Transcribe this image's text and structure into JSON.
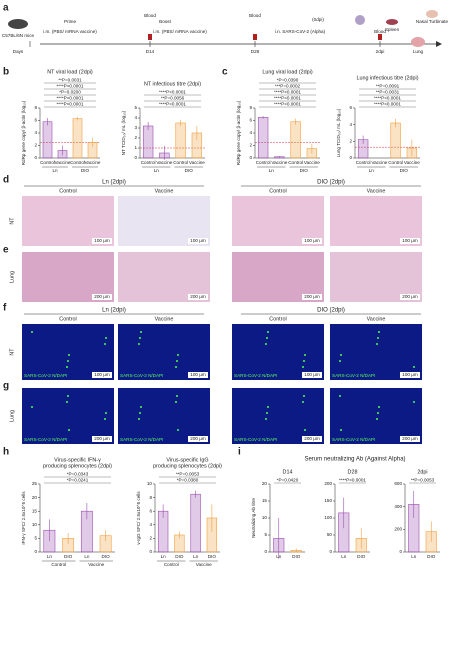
{
  "panel_labels": [
    "a",
    "b",
    "c",
    "d",
    "e",
    "f",
    "g",
    "h",
    "i"
  ],
  "timeline": [
    "C57BL/6N mice",
    "Days",
    "Prime",
    "i.m. (PBS/ mRNA vaccine)",
    "Blood",
    "D14",
    "Boost",
    "i.m. (PBS/ mRNA vaccine)",
    "Blood",
    "D28",
    "(0dpi)",
    "i.n. SARS-CoV-2 (Alpha)",
    "Blood",
    "2dpi",
    "Spleen",
    "Nasal Turbinate",
    "Lung"
  ],
  "histology": {
    "group_titles": [
      "Ln (2dpi)",
      "DIO (2dpi)"
    ],
    "columns": [
      "Control",
      "Vaccine",
      "Control",
      "Vaccine"
    ],
    "rows": [
      {
        "label": "NT",
        "scale": "100 μm"
      },
      {
        "label": "Lung",
        "scale": "200 μm"
      }
    ]
  },
  "fluorescence": {
    "group_titles": [
      "Ln (2dpi)",
      "DIO (2dpi)"
    ],
    "columns": [
      "Control",
      "Vaccine",
      "Control",
      "Vaccine"
    ],
    "stain": "SARS-CoV-2 N/DAPI",
    "rows": [
      {
        "label": "NT",
        "scale": "100 μm"
      },
      {
        "label": "Lung",
        "scale": "200 μm"
      }
    ]
  },
  "i_title": "Serum neutralizing Ab (Against Alpha)",
  "chart_data": [
    {
      "type": "bar",
      "title": [
        "NT viral load (2dpi)"
      ],
      "ylabel": "RdRp gene copy/ β-actin (log₁₀)",
      "categories": [
        "Control",
        "Vaccine",
        "Control",
        "Vaccine"
      ],
      "groups": [
        "Ln",
        "DIO"
      ],
      "values": [
        5.8,
        1.2,
        6.3,
        2.5
      ],
      "errors": [
        0.6,
        0.8,
        0.3,
        0.7
      ],
      "colors": [
        "#9b4fb0",
        "#9b4fb0",
        "#f0a040",
        "#f0a040"
      ],
      "ylim": [
        0,
        8
      ],
      "yticks": [
        0,
        2,
        4,
        6,
        8
      ],
      "limit": 2.5,
      "annotations": [
        "**P=0.0031",
        "****P<0.0001",
        "*P=0.0200",
        "****P<0.0001",
        "****P<0.0001"
      ]
    },
    {
      "type": "bar",
      "title": [
        "NT infectious titre (2dpi)"
      ],
      "ylabel": "NT TCID₅₀/ mL (log₁₀)",
      "categories": [
        "Control",
        "Vaccine",
        "Control",
        "Vaccine"
      ],
      "groups": [
        "Ln",
        "DIO"
      ],
      "values": [
        3.2,
        0.5,
        3.5,
        2.5
      ],
      "errors": [
        0.4,
        0.7,
        0.3,
        0.7
      ],
      "colors": [
        "#9b4fb0",
        "#9b4fb0",
        "#f0a040",
        "#f0a040"
      ],
      "ylim": [
        0,
        5
      ],
      "yticks": [
        0,
        1,
        2,
        3,
        4,
        5
      ],
      "limit": 1,
      "annotations": [
        "****P<0.0001",
        "**P=0.0056",
        "****P<0.0001"
      ]
    },
    {
      "type": "bar",
      "title": [
        "Lung viral load (2dpi)"
      ],
      "ylabel": "RdRp gene copy/ β-actin (log₁₀)",
      "categories": [
        "Control",
        "Vaccine",
        "Control",
        "Vaccine"
      ],
      "groups": [
        "Ln",
        "DIO"
      ],
      "values": [
        6.5,
        0.2,
        5.8,
        1.5
      ],
      "errors": [
        0.2,
        0.1,
        0.5,
        0.8
      ],
      "colors": [
        "#9b4fb0",
        "#9b4fb0",
        "#f0a040",
        "#f0a040"
      ],
      "ylim": [
        0,
        8
      ],
      "yticks": [
        0,
        2,
        4,
        6,
        8
      ],
      "limit": 2.5,
      "annotations": [
        "*P=0.0390",
        "***P=0.0002",
        "****P<0.0001",
        "****P<0.0001",
        "****P<0.0001"
      ]
    },
    {
      "type": "bar",
      "title": [
        "Lung infectious titre (2dpi)"
      ],
      "ylabel": "Lung TCID₅₀/ mL (log₁₀)",
      "categories": [
        "Control",
        "Vaccine",
        "Control",
        "Vaccine"
      ],
      "groups": [
        "Ln",
        "DIO"
      ],
      "values": [
        2.2,
        0.0,
        4.2,
        1.2
      ],
      "errors": [
        0.5,
        0.0,
        0.5,
        1.0
      ],
      "colors": [
        "#9b4fb0",
        "#9b4fb0",
        "#f0a040",
        "#f0a040"
      ],
      "ylim": [
        0,
        6
      ],
      "yticks": [
        0,
        2,
        4,
        6
      ],
      "limit": 1.3,
      "annotations": [
        "**P=0.0091",
        "**P=0.0031",
        "****P<0.0001",
        "****P<0.0001"
      ]
    },
    {
      "type": "bar",
      "title": [
        "Virus-specific IFN-γ",
        "producing splenocytes (2dpi)"
      ],
      "ylabel": "IFN-γ SFC/ 2.5x10^5 cells",
      "categories": [
        "Ln",
        "DIO",
        "Ln",
        "DIO"
      ],
      "groups": [
        "Control",
        "Vaccine"
      ],
      "values": [
        8,
        5,
        15,
        6
      ],
      "errors": [
        4,
        2,
        3,
        2
      ],
      "colors": [
        "#9b4fb0",
        "#f0a040",
        "#9b4fb0",
        "#f0a040"
      ],
      "ylim": [
        0,
        25
      ],
      "yticks": [
        0,
        5,
        10,
        15,
        20,
        25
      ],
      "annotations": [
        "*P=0.0343",
        "*P=0.0241"
      ]
    },
    {
      "type": "bar",
      "title": [
        "Virus-specific IgG",
        "producing splenocytes (2dpi)"
      ],
      "ylabel": "v-IgG SFC/ 2.5x10^5 cells",
      "categories": [
        "Ln",
        "DIO",
        "Ln",
        "DIO"
      ],
      "groups": [
        "Control",
        "Vaccine"
      ],
      "values": [
        6,
        2.5,
        8.5,
        5
      ],
      "errors": [
        1,
        0.5,
        0.5,
        2
      ],
      "colors": [
        "#9b4fb0",
        "#f0a040",
        "#9b4fb0",
        "#f0a040"
      ],
      "ylim": [
        0,
        10
      ],
      "yticks": [
        0,
        2,
        4,
        6,
        8,
        10
      ],
      "annotations": [
        "**P=0.0053",
        "*P=0.0380"
      ]
    },
    {
      "type": "bar",
      "title": [
        "D14"
      ],
      "ylabel": "Neutralizing Ab titre",
      "categories": [
        "Ln",
        "DIO"
      ],
      "values": [
        4,
        0.5
      ],
      "errors": [
        6,
        0.5
      ],
      "colors": [
        "#9b4fb0",
        "#f0a040"
      ],
      "ylim": [
        0,
        20
      ],
      "yticks": [
        0,
        5,
        10,
        15,
        20
      ],
      "annotations": [
        "*P=0.0420"
      ]
    },
    {
      "type": "bar",
      "title": [
        "D28"
      ],
      "categories": [
        "Ln",
        "DIO"
      ],
      "values": [
        115,
        40
      ],
      "errors": [
        45,
        30
      ],
      "colors": [
        "#9b4fb0",
        "#f0a040"
      ],
      "ylim": [
        0,
        200
      ],
      "yticks": [
        0,
        50,
        100,
        150,
        200
      ],
      "annotations": [
        "****P<0.0001"
      ]
    },
    {
      "type": "bar",
      "title": [
        "2dpi"
      ],
      "categories": [
        "Ln",
        "DIO"
      ],
      "values": [
        420,
        180
      ],
      "errors": [
        120,
        90
      ],
      "colors": [
        "#9b4fb0",
        "#f0a040"
      ],
      "ylim": [
        0,
        600
      ],
      "yticks": [
        0,
        200,
        400,
        600
      ],
      "annotations": [
        "**P=0.0053"
      ]
    }
  ]
}
